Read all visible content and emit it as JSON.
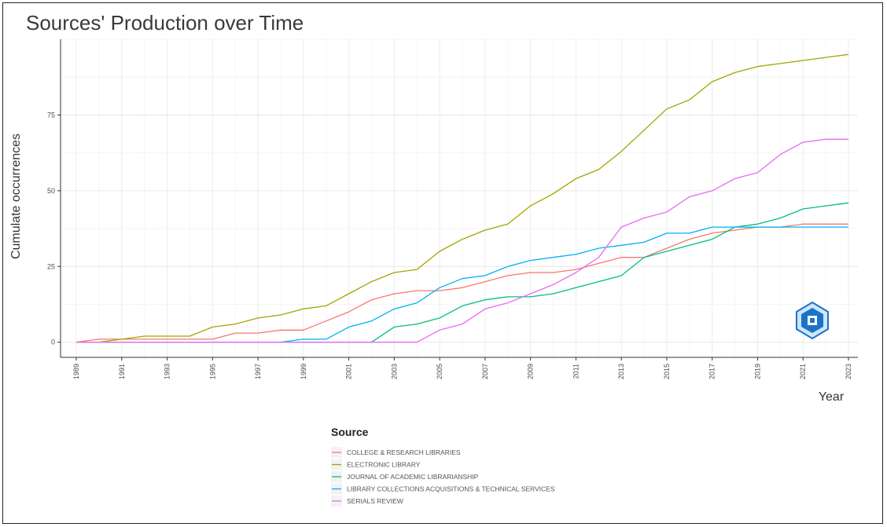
{
  "chart_data": {
    "type": "line",
    "title": "Sources' Production over Time",
    "xlabel": "Year",
    "ylabel": "Cumulate occurrences",
    "x": [
      1989,
      1990,
      1991,
      1992,
      1993,
      1994,
      1995,
      1996,
      1997,
      1998,
      1999,
      2000,
      2001,
      2002,
      2003,
      2004,
      2005,
      2006,
      2007,
      2008,
      2009,
      2010,
      2011,
      2012,
      2013,
      2014,
      2015,
      2016,
      2017,
      2018,
      2019,
      2020,
      2021,
      2022,
      2023
    ],
    "xticks": [
      "1989",
      "1991",
      "1993",
      "1995",
      "1997",
      "1999",
      "2001",
      "2003",
      "2005",
      "2007",
      "2009",
      "2011",
      "2013",
      "2015",
      "2017",
      "2019",
      "2021",
      "2023"
    ],
    "yticks": [
      "0",
      "25",
      "50",
      "75"
    ],
    "ylim": [
      -5,
      100
    ],
    "grid": true,
    "legend_title": "Source",
    "legend_position": "bottom",
    "series": [
      {
        "name": "COLLEGE & RESEARCH LIBRARIES",
        "color": "#F8766D",
        "values": [
          0,
          1,
          1,
          1,
          1,
          1,
          1,
          3,
          3,
          4,
          4,
          7,
          10,
          14,
          16,
          17,
          17,
          18,
          20,
          22,
          23,
          23,
          24,
          26,
          28,
          28,
          31,
          34,
          36,
          37,
          38,
          38,
          39,
          39,
          39
        ]
      },
      {
        "name": "ELECTRONIC LIBRARY",
        "color": "#A3A500",
        "values": [
          0,
          0,
          1,
          2,
          2,
          2,
          5,
          6,
          8,
          9,
          11,
          12,
          16,
          20,
          23,
          24,
          30,
          34,
          37,
          39,
          45,
          49,
          54,
          57,
          63,
          70,
          77,
          80,
          86,
          89,
          91,
          92,
          93,
          94,
          95
        ]
      },
      {
        "name": "JOURNAL OF ACADEMIC LIBRARIANSHIP",
        "color": "#00BF7D",
        "values": [
          0,
          0,
          0,
          0,
          0,
          0,
          0,
          0,
          0,
          0,
          0,
          0,
          0,
          0,
          5,
          6,
          8,
          12,
          14,
          15,
          15,
          16,
          18,
          20,
          22,
          28,
          30,
          32,
          34,
          38,
          39,
          41,
          44,
          45,
          46
        ]
      },
      {
        "name": "LIBRARY COLLECTIONS ACQUISITIONS & TECHNICAL SERVICES",
        "color": "#00B0F6",
        "values": [
          0,
          0,
          0,
          0,
          0,
          0,
          0,
          0,
          0,
          0,
          1,
          1,
          5,
          7,
          11,
          13,
          18,
          21,
          22,
          25,
          27,
          28,
          29,
          31,
          32,
          33,
          36,
          36,
          38,
          38,
          38,
          38,
          38,
          38,
          38
        ]
      },
      {
        "name": "SERIALS REVIEW",
        "color": "#E76BF3",
        "values": [
          0,
          0,
          0,
          0,
          0,
          0,
          0,
          0,
          0,
          0,
          0,
          0,
          0,
          0,
          0,
          0,
          4,
          6,
          11,
          13,
          16,
          19,
          23,
          28,
          38,
          41,
          43,
          48,
          50,
          54,
          56,
          62,
          66,
          67,
          67
        ]
      }
    ]
  }
}
